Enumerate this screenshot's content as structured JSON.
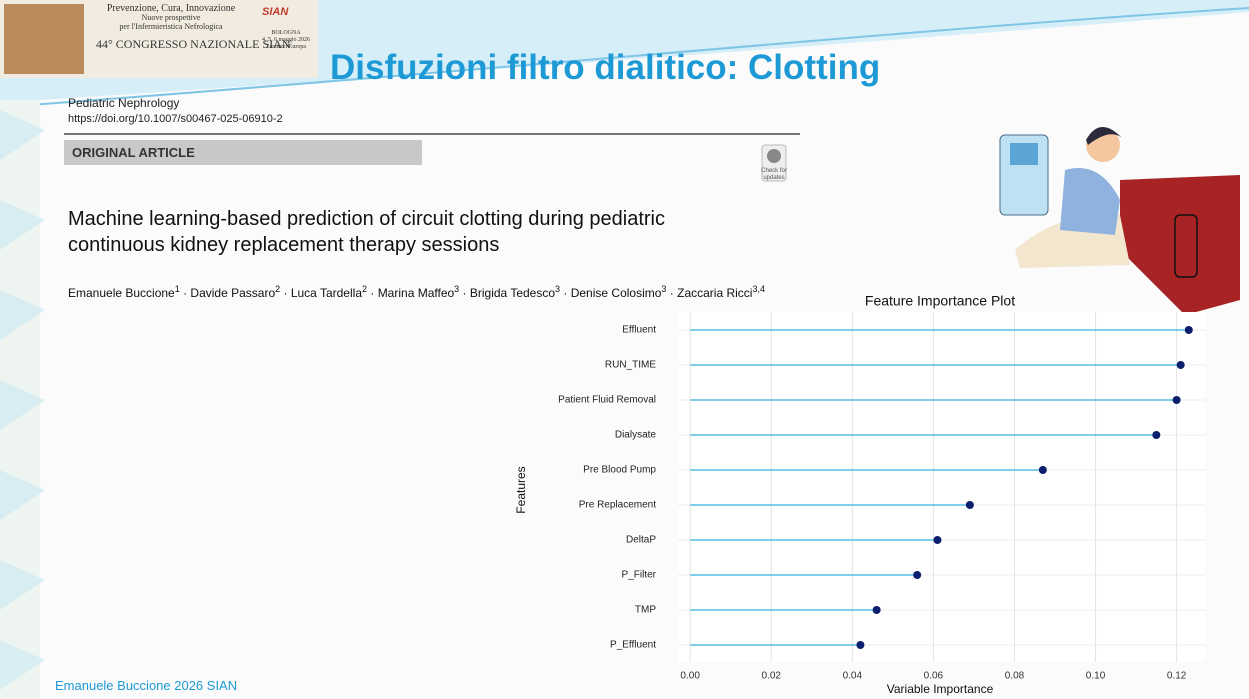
{
  "logo": {
    "lines": [
      "Prevenzione, Cura, Innovazione",
      "Nuove prospettive",
      "per l'Infermieristica Nefrologica"
    ],
    "congress": "44° CONGRESSO NAZIONALE SIAN",
    "brand": "SIAN",
    "city": "BOLOGNA",
    "dates": "4, 5, 6 maggio 2026",
    "venue": "Zanhotel Europa"
  },
  "slide_title": "Disfuzioni filtro dialitico: Clotting",
  "article": {
    "journal": "Pediatric Nephrology",
    "doi": "https://doi.org/10.1007/s00467-025-06910-2",
    "section": "ORIGINAL ARTICLE",
    "badge": [
      "Check for",
      "updates"
    ],
    "title_lines": [
      "Machine learning-based prediction of circuit clotting during pediatric",
      "continuous kidney replacement therapy sessions"
    ],
    "authors": [
      {
        "name": "Emanuele Buccione",
        "affil": "1"
      },
      {
        "name": "Davide Passaro",
        "affil": "2"
      },
      {
        "name": "Luca Tardella",
        "affil": "2"
      },
      {
        "name": "Marina Maffeo",
        "affil": "3"
      },
      {
        "name": "Brigida Tedesco",
        "affil": "3"
      },
      {
        "name": "Denise Colosimo",
        "affil": "3"
      },
      {
        "name": "Zaccaria Ricci",
        "affil": "3,4"
      }
    ]
  },
  "footer": "Emanuele Buccione 2026 SIAN",
  "chart_data": {
    "type": "lollipop",
    "title": "Feature Importance Plot",
    "x_label": "Variable Importance",
    "y_label": "Features",
    "categories": [
      "Effluent",
      "RUN_TIME",
      "Patient Fluid Removal",
      "Dialysate",
      "Pre Blood Pump",
      "Pre Replacement",
      "DeltaP",
      "P_Filter",
      "TMP",
      "P_Effluent"
    ],
    "values": [
      0.123,
      0.121,
      0.12,
      0.115,
      0.087,
      0.069,
      0.061,
      0.056,
      0.046,
      0.042
    ],
    "color": "#55bde3",
    "dot_color": "#0b1f6e",
    "xlim": [
      -0.003,
      0.127
    ],
    "xticks": [
      {
        "value": 0,
        "label": "0.00"
      },
      0.02,
      0.04,
      0.06,
      0.08,
      {
        "value": 0.1,
        "label": "0.10"
      },
      0.12
    ],
    "grid": true
  }
}
